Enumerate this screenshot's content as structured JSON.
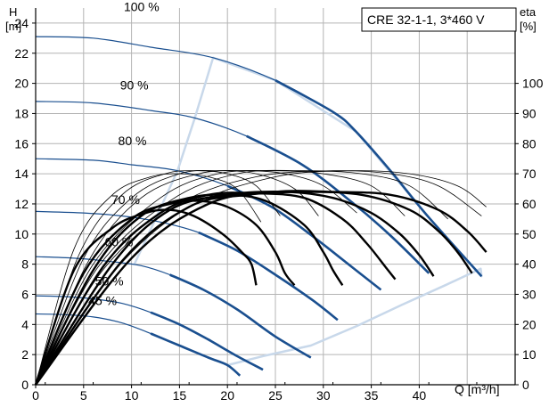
{
  "chart_data": {
    "type": "line",
    "title": "CRE 32-1-1, 3*460 V",
    "y_left_label": [
      "H",
      "[m]"
    ],
    "y_right_label": [
      "eta",
      "[%]"
    ],
    "xlabel": "Q [m³/h]",
    "xlim": [
      0,
      50
    ],
    "ylim": [
      0,
      25
    ],
    "y2lim": [
      0,
      125
    ],
    "x_ticks": [
      "0",
      "5",
      "10",
      "15",
      "20",
      "25",
      "30",
      "35",
      "40"
    ],
    "y_ticks": [
      "0",
      "2",
      "4",
      "6",
      "8",
      "10",
      "12",
      "14",
      "16",
      "18",
      "20",
      "22",
      "24"
    ],
    "y2_ticks": [
      "0",
      "10",
      "20",
      "30",
      "40",
      "50",
      "60",
      "70",
      "80",
      "90",
      "100"
    ],
    "grid": true,
    "colors": {
      "pump_curve": "#1a4f8f",
      "limit_curve": "#c8d8ea",
      "efficiency_curve": "#000000"
    },
    "speed_labels": [
      "100 %",
      "90 %",
      "80 %",
      "70 %",
      "60 %",
      "50 %",
      "45 %"
    ],
    "pump_curves": [
      {
        "label": "100 %",
        "points": [
          [
            0,
            23.1
          ],
          [
            6,
            23.0
          ],
          [
            12,
            22.4
          ],
          [
            18.5,
            21.7
          ],
          [
            25,
            20.2
          ],
          [
            31,
            18.1
          ],
          [
            33.4,
            16.8
          ],
          [
            37,
            14.2
          ],
          [
            41,
            11.1
          ],
          [
            46.5,
            7.2
          ]
        ]
      },
      {
        "label": "90 %",
        "points": [
          [
            0,
            18.8
          ],
          [
            6,
            18.7
          ],
          [
            12,
            18.2
          ],
          [
            16.6,
            17.7
          ],
          [
            22,
            16.5
          ],
          [
            27.8,
            14.6
          ],
          [
            33,
            12.1
          ],
          [
            37,
            9.9
          ],
          [
            41,
            7.4
          ]
        ]
      },
      {
        "label": "80 %",
        "points": [
          [
            0,
            15.0
          ],
          [
            6,
            14.9
          ],
          [
            10,
            14.6
          ],
          [
            14.8,
            14.2
          ],
          [
            20,
            13.2
          ],
          [
            24.6,
            11.8
          ],
          [
            29,
            9.8
          ],
          [
            33,
            7.8
          ],
          [
            36,
            6.3
          ]
        ]
      },
      {
        "label": "70 %",
        "points": [
          [
            0,
            11.5
          ],
          [
            5,
            11.4
          ],
          [
            9,
            11.2
          ],
          [
            13,
            10.8
          ],
          [
            17,
            10.1
          ],
          [
            21,
            8.9
          ],
          [
            25,
            7.3
          ],
          [
            28.9,
            5.6
          ],
          [
            31.5,
            4.3
          ]
        ]
      },
      {
        "label": "60 %",
        "points": [
          [
            0,
            8.5
          ],
          [
            4,
            8.4
          ],
          [
            7.5,
            8.2
          ],
          [
            11,
            7.9
          ],
          [
            14,
            7.3
          ],
          [
            17.5,
            6.3
          ],
          [
            21,
            5.0
          ],
          [
            25,
            3.2
          ],
          [
            28.7,
            1.8
          ]
        ]
      },
      {
        "label": "50 %",
        "points": [
          [
            0,
            5.9
          ],
          [
            3,
            5.85
          ],
          [
            6,
            5.7
          ],
          [
            9,
            5.4
          ],
          [
            12,
            4.8
          ],
          [
            15,
            4.0
          ],
          [
            18,
            3.0
          ],
          [
            21,
            1.9
          ],
          [
            23.7,
            1.0
          ]
        ]
      },
      {
        "label": "45 %",
        "points": [
          [
            0,
            4.7
          ],
          [
            3,
            4.65
          ],
          [
            6,
            4.5
          ],
          [
            9,
            4.1
          ],
          [
            12,
            3.4
          ],
          [
            15,
            2.6
          ],
          [
            18,
            1.8
          ],
          [
            20,
            1.3
          ],
          [
            21.3,
            0.6
          ]
        ]
      }
    ],
    "limit_curve": [
      [
        20,
        1.3
      ],
      [
        23.7,
        1.9
      ],
      [
        28.7,
        2.6
      ],
      [
        33.5,
        3.9
      ],
      [
        38.2,
        5.3
      ],
      [
        42.7,
        6.6
      ],
      [
        46.4,
        7.7
      ],
      [
        46.5,
        7.2
      ],
      [
        41,
        11.1
      ],
      [
        33.4,
        16.8
      ],
      [
        25,
        20.2
      ],
      [
        18.5,
        21.7
      ],
      [
        16.6,
        17.7
      ],
      [
        14.8,
        14.2
      ],
      [
        12.5,
        11.0
      ],
      [
        10.3,
        8.0
      ]
    ],
    "efficiency_curves": [
      {
        "thick": false,
        "points": [
          [
            0,
            0
          ],
          [
            4,
            45
          ],
          [
            8,
            63
          ],
          [
            12,
            69
          ],
          [
            15,
            70
          ],
          [
            18,
            69
          ],
          [
            21,
            65
          ],
          [
            23.5,
            54
          ]
        ]
      },
      {
        "thick": false,
        "points": [
          [
            0,
            0
          ],
          [
            4.5,
            43
          ],
          [
            9,
            63
          ],
          [
            13.5,
            70
          ],
          [
            17,
            71
          ],
          [
            20,
            70
          ],
          [
            23,
            66
          ],
          [
            25.5,
            56
          ]
        ]
      },
      {
        "thick": false,
        "points": [
          [
            0,
            0
          ],
          [
            5,
            42
          ],
          [
            10,
            62
          ],
          [
            15,
            70
          ],
          [
            19,
            71
          ],
          [
            23,
            70
          ],
          [
            27,
            65
          ],
          [
            29.5,
            56
          ]
        ]
      },
      {
        "thick": false,
        "points": [
          [
            0,
            0
          ],
          [
            5.5,
            41
          ],
          [
            11,
            62
          ],
          [
            17,
            70
          ],
          [
            22,
            71
          ],
          [
            26,
            70
          ],
          [
            30,
            66
          ],
          [
            33.5,
            57
          ]
        ]
      },
      {
        "thick": false,
        "points": [
          [
            0,
            0
          ],
          [
            6,
            40
          ],
          [
            13,
            62
          ],
          [
            19,
            70
          ],
          [
            25,
            71
          ],
          [
            30,
            70
          ],
          [
            35,
            66
          ],
          [
            38.5,
            56
          ]
        ]
      },
      {
        "thick": false,
        "points": [
          [
            0,
            0
          ],
          [
            6.5,
            39
          ],
          [
            14,
            61
          ],
          [
            21,
            70
          ],
          [
            28,
            71
          ],
          [
            34,
            70
          ],
          [
            39,
            66
          ],
          [
            43,
            55
          ]
        ]
      },
      {
        "thick": false,
        "points": [
          [
            0,
            0
          ],
          [
            7,
            38
          ],
          [
            15,
            60
          ],
          [
            23,
            69
          ],
          [
            31,
            71
          ],
          [
            37,
            70
          ],
          [
            42,
            66
          ],
          [
            46.5,
            56
          ]
        ]
      },
      {
        "thick": false,
        "points": [
          [
            0,
            0
          ],
          [
            8,
            37
          ],
          [
            16,
            59
          ],
          [
            25,
            69
          ],
          [
            33,
            71
          ],
          [
            39,
            70
          ],
          [
            44,
            66
          ],
          [
            47,
            59
          ]
        ]
      },
      {
        "thick": true,
        "points": [
          [
            0,
            0
          ],
          [
            4,
            38
          ],
          [
            8,
            52
          ],
          [
            11.5,
            57
          ],
          [
            14,
            58
          ],
          [
            16.5,
            56
          ],
          [
            19.5,
            50
          ],
          [
            21.5,
            44
          ],
          [
            22.5,
            40
          ],
          [
            23,
            33
          ]
        ]
      },
      {
        "thick": true,
        "points": [
          [
            0,
            0
          ],
          [
            5,
            37
          ],
          [
            10,
            55
          ],
          [
            14,
            60
          ],
          [
            17,
            61
          ],
          [
            20,
            59
          ],
          [
            23,
            53
          ],
          [
            25,
            44
          ],
          [
            26,
            37
          ],
          [
            27,
            33
          ]
        ]
      },
      {
        "thick": true,
        "points": [
          [
            0,
            0
          ],
          [
            6,
            38
          ],
          [
            11,
            56
          ],
          [
            16,
            62
          ],
          [
            20,
            63
          ],
          [
            24,
            61
          ],
          [
            28,
            53
          ],
          [
            30,
            44
          ],
          [
            31,
            38
          ],
          [
            32,
            33
          ]
        ]
      },
      {
        "thick": true,
        "points": [
          [
            0,
            0
          ],
          [
            7,
            39
          ],
          [
            13,
            57
          ],
          [
            18,
            63
          ],
          [
            23,
            63.5
          ],
          [
            28,
            62
          ],
          [
            32,
            55
          ],
          [
            34.5,
            47
          ],
          [
            36.5,
            39
          ],
          [
            37.5,
            35
          ]
        ]
      },
      {
        "thick": true,
        "points": [
          [
            0,
            0
          ],
          [
            8,
            40
          ],
          [
            14,
            58
          ],
          [
            20,
            63
          ],
          [
            26,
            64
          ],
          [
            31,
            62
          ],
          [
            35,
            57
          ],
          [
            38,
            50
          ],
          [
            40,
            43
          ],
          [
            41.5,
            36
          ]
        ]
      },
      {
        "thick": true,
        "points": [
          [
            0,
            0
          ],
          [
            9,
            41
          ],
          [
            16,
            59
          ],
          [
            22,
            63
          ],
          [
            28,
            64
          ],
          [
            34,
            63
          ],
          [
            39,
            58
          ],
          [
            42,
            51
          ],
          [
            44,
            44
          ],
          [
            45.5,
            37
          ]
        ]
      },
      {
        "thick": true,
        "points": [
          [
            0,
            0
          ],
          [
            10,
            42
          ],
          [
            18,
            60
          ],
          [
            25,
            64
          ],
          [
            31,
            64
          ],
          [
            37,
            63
          ],
          [
            42,
            58
          ],
          [
            45,
            51
          ],
          [
            47,
            44
          ]
        ]
      }
    ]
  }
}
